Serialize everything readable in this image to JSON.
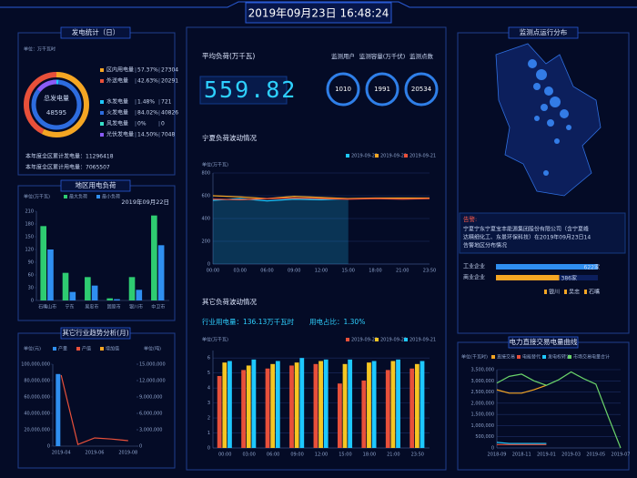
{
  "header": {
    "datetime": "2019年09月23日 16:48:24"
  },
  "kpi": {
    "avg_load_label": "平均负荷(万千瓦)",
    "avg_load": 559.82,
    "counters": [
      {
        "label": "监测用户",
        "value": 1010
      },
      {
        "label": "监测容量(万千伏)",
        "value": 1991
      },
      {
        "label": "监测点数",
        "value": 20534
      }
    ]
  },
  "generation_totals": [
    "本年度全区累计发电量：11296418",
    "本年度全区累计用电量：7065507"
  ],
  "map": {
    "title": "监测点运行分布",
    "alarm_label": "告警:",
    "alarm_lines": [
      "宁夏宁东宁夏宝丰能源集团股份有限公司（含宁夏峰",
      "达精细化工、东景环保科技）在2019年09月23日14"
    ],
    "regions": [
      "银川",
      "吴忠",
      "石嘴"
    ]
  },
  "chart_data": [
    {
      "type": "donut",
      "title": "发电统计（日）",
      "unit": "单位：万千瓦时",
      "center_label": "总发电量",
      "center_value": 48595,
      "groups": [
        {
          "categories": [
            "区内用电量",
            "外送电量"
          ],
          "values": [
            57.37,
            42.63
          ],
          "value_labels": [
            "57.37%",
            "42.63%"
          ],
          "amounts": [
            27304,
            20291
          ],
          "colors": [
            "#f5a623",
            "#e8503a"
          ]
        },
        {
          "categories": [
            "水发电量",
            "火发电量",
            "风发电量",
            "光伏发电量"
          ],
          "values": [
            1.48,
            84.02,
            0,
            14.5
          ],
          "value_labels": [
            "1.48%",
            "84.02%",
            "0%",
            "14.50%"
          ],
          "amounts": [
            721,
            40826,
            0,
            7048
          ],
          "colors": [
            "#1ec8ff",
            "#2d6cdf",
            "#37e0c8",
            "#8a5cf6"
          ]
        }
      ]
    },
    {
      "type": "bar",
      "title": "地区用电负荷",
      "unit": "单位(万千瓦)",
      "date": "2019年09月22日",
      "categories": [
        "石嘴山市",
        "宁东",
        "吴忠市",
        "固原市",
        "银川市",
        "中卫市"
      ],
      "series": [
        {
          "name": "最大负荷",
          "color": "#2ecc71",
          "values": [
            175,
            65,
            55,
            5,
            55,
            200
          ]
        },
        {
          "name": "最小负荷",
          "color": "#2f8ff0",
          "values": [
            120,
            20,
            35,
            3,
            25,
            130
          ]
        }
      ],
      "ylim": [
        0,
        210
      ],
      "yticks": [
        0,
        30,
        60,
        90,
        120,
        150,
        180,
        210
      ]
    },
    {
      "type": "bar",
      "title": "其它行业趋势分析(月)",
      "unit": "单位(元)",
      "y2_unit": "单位(吨)",
      "categories": [
        "2019-04",
        null,
        "2019-06",
        null,
        "2019-08"
      ],
      "series": [
        {
          "name": "产量",
          "color": "#2f8ff0",
          "values": [
            88000000,
            null,
            null,
            null,
            null
          ]
        },
        {
          "name": "产值",
          "color": "#e8503a",
          "type": "line",
          "axis": "y2",
          "values": [
            13000000,
            300000,
            1500000,
            1300000,
            1000000
          ]
        },
        {
          "name": "增加值",
          "color": "#f5a623",
          "values": [
            null,
            null,
            null,
            null,
            null
          ]
        }
      ],
      "ylim": [
        0,
        100000000
      ],
      "yticks": [
        0,
        {
          "value": 20000000,
          "label": "20,000,000"
        },
        {
          "value": 40000000,
          "label": "40,000,000"
        },
        {
          "value": 60000000,
          "label": "60,000,000"
        },
        {
          "value": 80000000,
          "label": "80,000,000"
        },
        {
          "value": 100000000,
          "label": "100,000,000"
        }
      ],
      "y2lim": [
        0,
        15000000
      ],
      "y2ticks": [
        0,
        {
          "value": 3000000,
          "label": "3,000,000"
        },
        {
          "value": 6000000,
          "label": "6,000,000"
        },
        {
          "value": 9000000,
          "label": "9,000,000"
        },
        {
          "value": 12000000,
          "label": "12,000,000"
        },
        {
          "value": 15000000,
          "label": "15,000,000"
        }
      ]
    },
    {
      "type": "line",
      "title": "宁夏负荷波动情况",
      "unit": "单位(万千瓦)",
      "categories": [
        "00:00",
        "03:00",
        "06:00",
        "09:00",
        "12:00",
        "15:00",
        "18:00",
        "21:00",
        "23:50"
      ],
      "series": [
        {
          "name": "2019-09-23",
          "color": "#1ec8ff",
          "area": true,
          "values": [
            560,
            575,
            555,
            570,
            565,
            575,
            null,
            null,
            null
          ]
        },
        {
          "name": "2019-09-22",
          "color": "#f5a623",
          "values": [
            600,
            590,
            575,
            595,
            585,
            575,
            580,
            580,
            580
          ]
        },
        {
          "name": "2019-09-21",
          "color": "#e8503a",
          "values": [
            570,
            565,
            575,
            580,
            575,
            570,
            575,
            570,
            575
          ]
        }
      ],
      "ylim": [
        0,
        800
      ],
      "yticks": [
        0,
        200,
        400,
        600,
        800
      ],
      "grid": true
    },
    {
      "type": "bar",
      "title": "其它负荷波动情况",
      "unit": "单位(万千瓦)",
      "annotations": [
        "行业用电量：136.13万千瓦时",
        "用电占比：1.30%"
      ],
      "categories": [
        "00:00",
        "03:00",
        "06:00",
        "09:00",
        "12:00",
        "15:00",
        "18:00",
        "21:00",
        "23:50"
      ],
      "series": [
        {
          "name": "2019-09-23",
          "color": "#e8503a",
          "values": [
            4.8,
            5.2,
            5.3,
            5.5,
            5.6,
            4.3,
            4.5,
            5.2,
            5.3
          ]
        },
        {
          "name": "2019-09-22",
          "color": "#f5c623",
          "values": [
            5.7,
            5.5,
            5.6,
            5.7,
            5.8,
            5.6,
            5.7,
            5.8,
            5.6
          ]
        },
        {
          "name": "2019-09-21",
          "color": "#1ec8ff",
          "values": [
            5.8,
            5.9,
            5.8,
            6,
            5.9,
            5.9,
            5.8,
            5.9,
            5.8
          ]
        }
      ],
      "ylim": [
        0,
        6.5
      ],
      "yticks": [
        0,
        1,
        2,
        3,
        4,
        5,
        6
      ],
      "grid": true
    },
    {
      "type": "hbar",
      "title": "告警地区分布情况",
      "categories": [
        "工业企业",
        "商业企业"
      ],
      "values": [
        622,
        386
      ],
      "value_labels": [
        "622家",
        "386家"
      ],
      "colors": [
        "#2f8ff0",
        "#f5a623"
      ]
    },
    {
      "type": "line",
      "title": "电力直接交易电量曲线",
      "unit": "单位(千瓦时)",
      "categories": [
        "2018-09",
        null,
        "2018-11",
        null,
        "2019-01",
        null,
        "2019-03",
        null,
        "2019-05",
        null,
        "2019-07"
      ],
      "series": [
        {
          "name": "直接交易",
          "color": "#f5a623",
          "values": [
            2600000,
            2450000,
            2450000,
            2600000,
            2800000,
            null,
            null,
            null,
            null,
            null,
            null
          ]
        },
        {
          "name": "电能替代",
          "color": "#e8503a",
          "values": [
            150000,
            150000,
            150000,
            150000,
            150000,
            null,
            null,
            null,
            null,
            null,
            null
          ]
        },
        {
          "name": "发电权转让",
          "color": "#1ec8ff",
          "values": [
            250000,
            200000,
            200000,
            200000,
            200000,
            null,
            null,
            null,
            null,
            null,
            null
          ]
        },
        {
          "name": "市场交易电量合计",
          "color": "#6ad36a",
          "values": [
            2900000,
            3200000,
            3300000,
            3000000,
            2800000,
            3050000,
            3400000,
            3100000,
            2850000,
            1400000,
            0
          ]
        }
      ],
      "ylim": [
        0,
        3500000
      ],
      "yticks": [
        0,
        {
          "value": 500000,
          "label": "500,000"
        },
        {
          "value": 1000000,
          "label": "1,000,000"
        },
        {
          "value": 1500000,
          "label": "1,500,000"
        },
        {
          "value": 2000000,
          "label": "2,000,000"
        },
        {
          "value": 2500000,
          "label": "2,500,000"
        },
        {
          "value": 3000000,
          "label": "3,000,000"
        },
        {
          "value": 3500000,
          "label": "3,500,000"
        }
      ],
      "grid": true
    }
  ]
}
